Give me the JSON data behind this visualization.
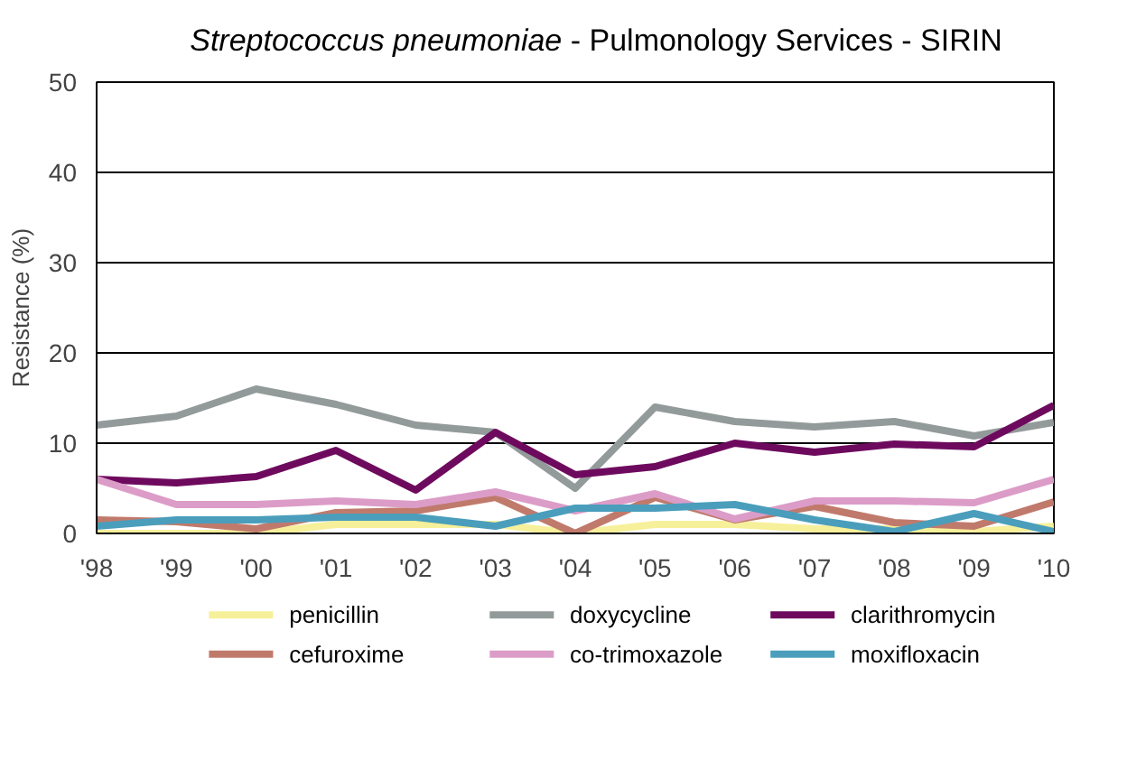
{
  "chart_data": {
    "type": "line",
    "title": "Streptococcus pneumoniae - Pulmonology Services - SIRIN",
    "ylabel": "Resistance (%)",
    "categories": [
      "'98",
      "'99",
      "'00",
      "'01",
      "'02",
      "'03",
      "'04",
      "'05",
      "'06",
      "'07",
      "'08",
      "'09",
      "'10"
    ],
    "ylim": [
      0,
      50
    ],
    "yticks": [
      0,
      10,
      20,
      30,
      40,
      50
    ],
    "grid": "y",
    "legend": "bottom",
    "line_style": "solid",
    "marker": "none",
    "series": [
      {
        "name": "penicillin",
        "color": "#f7f09a",
        "values": [
          0,
          0,
          0,
          1,
          1,
          1,
          0,
          1,
          1,
          0.5,
          0.5,
          0.2,
          0.8
        ]
      },
      {
        "name": "doxycycline",
        "color": "#939a9a",
        "values": [
          12,
          13,
          16,
          14.3,
          12,
          11.2,
          5,
          14,
          12.4,
          11.8,
          12.4,
          10.8,
          12.3
        ]
      },
      {
        "name": "clarithromycin",
        "color": "#6e0a5e",
        "values": [
          6,
          5.6,
          6.3,
          9.2,
          4.8,
          11.2,
          6.5,
          7.4,
          10,
          9,
          9.9,
          9.6,
          14.2
        ]
      },
      {
        "name": "cefuroxime",
        "color": "#c07a6c",
        "values": [
          1.5,
          1.3,
          0.5,
          2.3,
          2.5,
          4,
          0,
          4,
          1.5,
          3,
          1.2,
          0.8,
          3.5
        ]
      },
      {
        "name": "co-trimoxazole",
        "color": "#dc9cc8",
        "values": [
          6,
          3.2,
          3.2,
          3.6,
          3.2,
          4.6,
          2.5,
          4.4,
          1.6,
          3.6,
          3.6,
          3.4,
          6
        ]
      },
      {
        "name": "moxifloxacin",
        "color": "#4a9ebc",
        "values": [
          0.8,
          1.5,
          1.5,
          1.8,
          1.8,
          0.8,
          2.8,
          2.8,
          3.2,
          1.5,
          0.2,
          2.2,
          0.2
        ]
      }
    ]
  }
}
